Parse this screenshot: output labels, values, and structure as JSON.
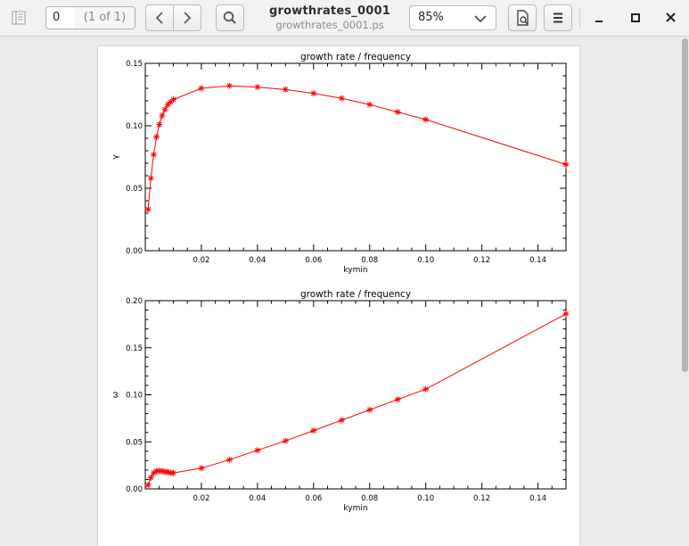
{
  "toolbar": {
    "page_number": "0",
    "page_count": "(1 of 1)",
    "title": "growthrates_0001",
    "subtitle": "growthrates_0001.ps",
    "zoom": "85%",
    "icons": [
      "sidebar-icon",
      "chevron-left-icon",
      "chevron-right-icon",
      "search-icon",
      "chevron-down-icon",
      "annotate-icon",
      "hamburger-menu-icon",
      "minimize-icon",
      "maximize-icon",
      "close-icon"
    ]
  },
  "chart_data": [
    {
      "type": "line",
      "title": "growth rate / frequency",
      "xlabel": "kymin",
      "ylabel": "γ",
      "xlim": [
        0,
        0.15
      ],
      "ylim": [
        0,
        0.15
      ],
      "xticks": [
        "0.02",
        "0.04",
        "0.06",
        "0.08",
        "0.10",
        "0.12",
        "0.14"
      ],
      "yticks": [
        "0.00",
        "0.05",
        "0.10",
        "0.15"
      ],
      "color": "#ff0000",
      "marker": "asterisk",
      "x": [
        0.001,
        0.002,
        0.003,
        0.004,
        0.005,
        0.006,
        0.007,
        0.008,
        0.009,
        0.01,
        0.02,
        0.03,
        0.04,
        0.05,
        0.06,
        0.07,
        0.08,
        0.09,
        0.1,
        0.15
      ],
      "y": [
        0.033,
        0.058,
        0.077,
        0.091,
        0.101,
        0.108,
        0.113,
        0.117,
        0.119,
        0.121,
        0.13,
        0.132,
        0.131,
        0.129,
        0.126,
        0.122,
        0.117,
        0.111,
        0.105,
        0.069
      ]
    },
    {
      "type": "line",
      "title": "growth rate / frequency",
      "xlabel": "kymin",
      "ylabel": "ω",
      "xlim": [
        0,
        0.15
      ],
      "ylim": [
        0,
        0.2
      ],
      "xticks": [
        "0.02",
        "0.04",
        "0.06",
        "0.08",
        "0.10",
        "0.12",
        "0.14"
      ],
      "yticks": [
        "0.00",
        "0.05",
        "0.10",
        "0.15",
        "0.20"
      ],
      "color": "#ff0000",
      "marker": "asterisk",
      "x": [
        0.001,
        0.002,
        0.003,
        0.004,
        0.005,
        0.006,
        0.007,
        0.008,
        0.009,
        0.01,
        0.02,
        0.03,
        0.04,
        0.05,
        0.06,
        0.07,
        0.08,
        0.09,
        0.1,
        0.15
      ],
      "y": [
        0.004,
        0.012,
        0.017,
        0.019,
        0.019,
        0.019,
        0.018,
        0.018,
        0.017,
        0.017,
        0.022,
        0.031,
        0.041,
        0.051,
        0.062,
        0.073,
        0.084,
        0.095,
        0.106,
        0.186
      ]
    }
  ]
}
